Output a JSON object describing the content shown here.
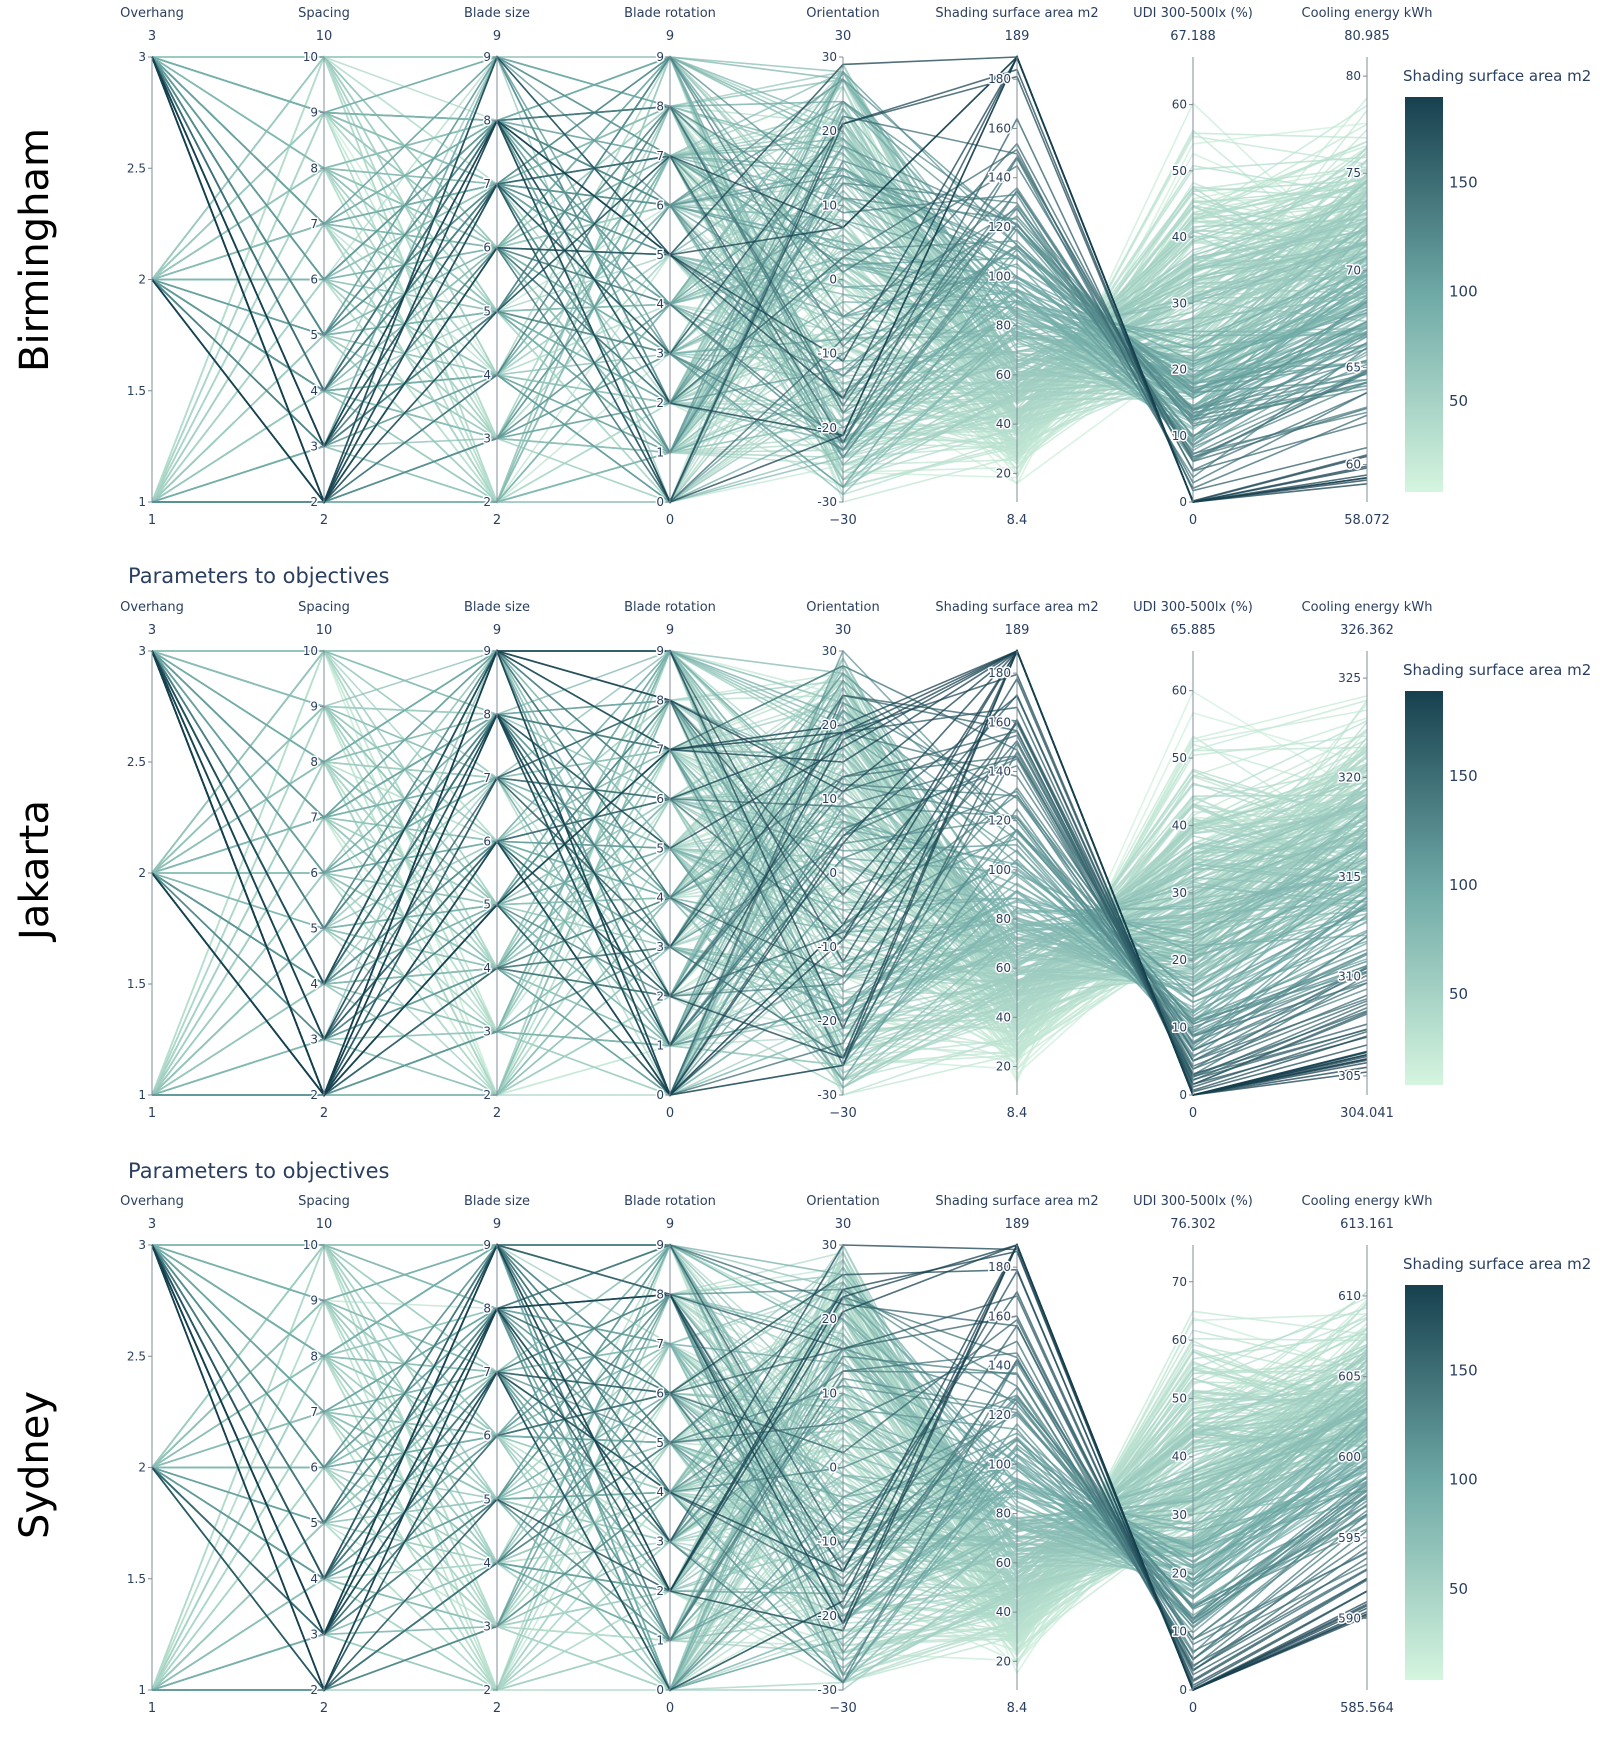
{
  "colors": {
    "scale_low": "#d5f5df",
    "scale_mid": "#6fa9a6",
    "scale_high": "#17404f",
    "text": "#2a3f5f",
    "axis_line": "#7f8c99"
  },
  "chart_data": [
    {
      "type": "parallel_coordinates",
      "row_label": "Birmingham",
      "title": "",
      "color_variable": "Shading surface area m2",
      "colorbar": {
        "title": "Shading surface area m2",
        "range": [
          8.4,
          189
        ],
        "ticks": [
          50,
          100,
          150
        ]
      },
      "dimensions": [
        {
          "name": "Overhang",
          "range": [
            1,
            3
          ],
          "ticks": [
            1,
            1.5,
            2,
            2.5,
            3
          ],
          "min_label": "1",
          "max_label": "3"
        },
        {
          "name": "Spacing",
          "range": [
            2,
            10
          ],
          "ticks": [
            2,
            3,
            4,
            5,
            6,
            7,
            8,
            9,
            10
          ],
          "min_label": "2",
          "max_label": "10"
        },
        {
          "name": "Blade size",
          "range": [
            2,
            9
          ],
          "ticks": [
            2,
            3,
            4,
            5,
            6,
            7,
            8,
            9
          ],
          "min_label": "2",
          "max_label": "9"
        },
        {
          "name": "Blade rotation",
          "range": [
            0,
            9
          ],
          "ticks": [
            0,
            1,
            2,
            3,
            4,
            5,
            6,
            7,
            8,
            9
          ],
          "min_label": "0",
          "max_label": "9"
        },
        {
          "name": "Orientation",
          "range": [
            -30,
            30
          ],
          "ticks": [
            -30,
            -20,
            -10,
            0,
            10,
            20,
            30
          ],
          "min_label": "−30",
          "max_label": "30"
        },
        {
          "name": "Shading surface area m2",
          "range": [
            8.4,
            189
          ],
          "ticks": [
            20,
            40,
            60,
            80,
            100,
            120,
            140,
            160,
            180
          ],
          "min_label": "8.4",
          "max_label": "189"
        },
        {
          "name": "UDI 300-500lx (%)",
          "range": [
            0,
            67.188
          ],
          "ticks": [
            0,
            10,
            20,
            30,
            40,
            50,
            60
          ],
          "min_label": "0",
          "max_label": "67.188"
        },
        {
          "name": "Cooling energy kWh",
          "range": [
            58.072,
            80.985
          ],
          "ticks": [
            60,
            65,
            70,
            75,
            80
          ],
          "min_label": "58.072",
          "max_label": "80.985"
        }
      ],
      "objective_trend": {
        "udi_peak_fraction": 0.35,
        "cooling_low_fraction": 0.08
      }
    },
    {
      "type": "parallel_coordinates",
      "row_label": "Jakarta",
      "title": "Parameters to objectives",
      "color_variable": "Shading surface area m2",
      "colorbar": {
        "title": "Shading surface area m2",
        "range": [
          8.4,
          189
        ],
        "ticks": [
          50,
          100,
          150
        ]
      },
      "dimensions": [
        {
          "name": "Overhang",
          "range": [
            1,
            3
          ],
          "ticks": [
            1,
            1.5,
            2,
            2.5,
            3
          ],
          "min_label": "1",
          "max_label": "3"
        },
        {
          "name": "Spacing",
          "range": [
            2,
            10
          ],
          "ticks": [
            2,
            3,
            4,
            5,
            6,
            7,
            8,
            9,
            10
          ],
          "min_label": "2",
          "max_label": "10"
        },
        {
          "name": "Blade size",
          "range": [
            2,
            9
          ],
          "ticks": [
            2,
            3,
            4,
            5,
            6,
            7,
            8,
            9
          ],
          "min_label": "2",
          "max_label": "9"
        },
        {
          "name": "Blade rotation",
          "range": [
            0,
            9
          ],
          "ticks": [
            0,
            1,
            2,
            3,
            4,
            5,
            6,
            7,
            8,
            9
          ],
          "min_label": "0",
          "max_label": "9"
        },
        {
          "name": "Orientation",
          "range": [
            -30,
            30
          ],
          "ticks": [
            -30,
            -20,
            -10,
            0,
            10,
            20,
            30
          ],
          "min_label": "−30",
          "max_label": "30"
        },
        {
          "name": "Shading surface area m2",
          "range": [
            8.4,
            189
          ],
          "ticks": [
            20,
            40,
            60,
            80,
            100,
            120,
            140,
            160,
            180
          ],
          "min_label": "8.4",
          "max_label": "189"
        },
        {
          "name": "UDI 300-500lx (%)",
          "range": [
            0,
            65.885
          ],
          "ticks": [
            0,
            10,
            20,
            30,
            40,
            50,
            60
          ],
          "min_label": "0",
          "max_label": "65.885"
        },
        {
          "name": "Cooling energy kWh",
          "range": [
            304.041,
            326.362
          ],
          "ticks": [
            305,
            310,
            315,
            320,
            325
          ],
          "min_label": "304.041",
          "max_label": "326.362"
        }
      ],
      "objective_trend": {
        "udi_peak_fraction": 0.4,
        "cooling_low_fraction": 0.1
      }
    },
    {
      "type": "parallel_coordinates",
      "row_label": "Sydney",
      "title": "Parameters to objectives",
      "color_variable": "Shading surface area m2",
      "colorbar": {
        "title": "Shading surface area m2",
        "range": [
          8.4,
          189
        ],
        "ticks": [
          50,
          100,
          150
        ]
      },
      "dimensions": [
        {
          "name": "Overhang",
          "range": [
            1,
            3
          ],
          "ticks": [
            1,
            1.5,
            2,
            2.5,
            3
          ],
          "min_label": "1",
          "max_label": "3"
        },
        {
          "name": "Spacing",
          "range": [
            2,
            10
          ],
          "ticks": [
            2,
            3,
            4,
            5,
            6,
            7,
            8,
            9,
            10
          ],
          "min_label": "2",
          "max_label": "10"
        },
        {
          "name": "Blade size",
          "range": [
            2,
            9
          ],
          "ticks": [
            2,
            3,
            4,
            5,
            6,
            7,
            8,
            9
          ],
          "min_label": "2",
          "max_label": "9"
        },
        {
          "name": "Blade rotation",
          "range": [
            0,
            9
          ],
          "ticks": [
            0,
            1,
            2,
            3,
            4,
            5,
            6,
            7,
            8,
            9
          ],
          "min_label": "0",
          "max_label": "9"
        },
        {
          "name": "Orientation",
          "range": [
            -30,
            30
          ],
          "ticks": [
            -30,
            -20,
            -10,
            0,
            10,
            20,
            30
          ],
          "min_label": "−30",
          "max_label": "30"
        },
        {
          "name": "Shading surface area m2",
          "range": [
            8.4,
            189
          ],
          "ticks": [
            20,
            40,
            60,
            80,
            100,
            120,
            140,
            160,
            180
          ],
          "min_label": "8.4",
          "max_label": "189"
        },
        {
          "name": "UDI 300-500lx (%)",
          "range": [
            0,
            76.302
          ],
          "ticks": [
            0,
            10,
            20,
            30,
            40,
            50,
            60,
            70
          ],
          "min_label": "0",
          "max_label": "76.302"
        },
        {
          "name": "Cooling energy kWh",
          "range": [
            585.564,
            613.161
          ],
          "ticks": [
            590,
            595,
            600,
            605,
            610
          ],
          "min_label": "585.564",
          "max_label": "613.161"
        }
      ],
      "objective_trend": {
        "udi_peak_fraction": 0.45,
        "cooling_low_fraction": 0.2
      }
    }
  ]
}
